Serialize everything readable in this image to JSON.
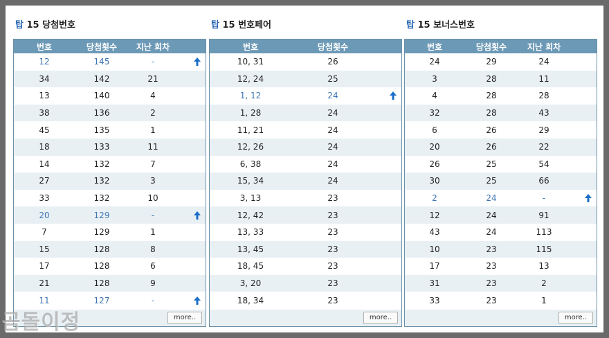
{
  "colors": {
    "header_bg": "#6c99b6",
    "border": "#6a8fa8",
    "highlight_text": "#3e76b3",
    "alt_row_bg": "#e9f0f4",
    "arrow": "#1a6fc9",
    "outer_bg": "#6a6a6a"
  },
  "watermark": "곰돌이정",
  "panels": [
    {
      "title_prefix": "탑",
      "title_rest": "15 당첨번호",
      "headers": [
        "번호",
        "당첨횟수",
        "지난 회차"
      ],
      "more_label": "more..",
      "rows": [
        {
          "c": [
            "12",
            "145",
            "-"
          ],
          "highlight": true,
          "arrow": "up-arrow-icon"
        },
        {
          "c": [
            "34",
            "142",
            "21"
          ],
          "highlight": false,
          "arrow": ""
        },
        {
          "c": [
            "13",
            "140",
            "4"
          ],
          "highlight": false,
          "arrow": ""
        },
        {
          "c": [
            "38",
            "136",
            "2"
          ],
          "highlight": false,
          "arrow": ""
        },
        {
          "c": [
            "45",
            "135",
            "1"
          ],
          "highlight": false,
          "arrow": ""
        },
        {
          "c": [
            "18",
            "133",
            "11"
          ],
          "highlight": false,
          "arrow": ""
        },
        {
          "c": [
            "14",
            "132",
            "7"
          ],
          "highlight": false,
          "arrow": ""
        },
        {
          "c": [
            "27",
            "132",
            "3"
          ],
          "highlight": false,
          "arrow": ""
        },
        {
          "c": [
            "33",
            "132",
            "10"
          ],
          "highlight": false,
          "arrow": ""
        },
        {
          "c": [
            "20",
            "129",
            "-"
          ],
          "highlight": true,
          "arrow": "up-arrow-icon"
        },
        {
          "c": [
            "7",
            "129",
            "1"
          ],
          "highlight": false,
          "arrow": ""
        },
        {
          "c": [
            "15",
            "128",
            "8"
          ],
          "highlight": false,
          "arrow": ""
        },
        {
          "c": [
            "17",
            "128",
            "6"
          ],
          "highlight": false,
          "arrow": ""
        },
        {
          "c": [
            "21",
            "128",
            "9"
          ],
          "highlight": false,
          "arrow": ""
        },
        {
          "c": [
            "11",
            "127",
            "-"
          ],
          "highlight": true,
          "arrow": "up-arrow-icon"
        }
      ]
    },
    {
      "title_prefix": "탑",
      "title_rest": "15 번호페어",
      "headers": [
        "번호",
        "당첨횟수"
      ],
      "more_label": "more..",
      "rows": [
        {
          "c": [
            "10, 31",
            "26"
          ],
          "highlight": false,
          "arrow": ""
        },
        {
          "c": [
            "12, 24",
            "25"
          ],
          "highlight": false,
          "arrow": ""
        },
        {
          "c": [
            "1, 12",
            "24"
          ],
          "highlight": true,
          "arrow": "up-arrow-icon"
        },
        {
          "c": [
            "1, 28",
            "24"
          ],
          "highlight": false,
          "arrow": ""
        },
        {
          "c": [
            "11, 21",
            "24"
          ],
          "highlight": false,
          "arrow": ""
        },
        {
          "c": [
            "12, 26",
            "24"
          ],
          "highlight": false,
          "arrow": ""
        },
        {
          "c": [
            "6, 38",
            "24"
          ],
          "highlight": false,
          "arrow": ""
        },
        {
          "c": [
            "15, 34",
            "24"
          ],
          "highlight": false,
          "arrow": ""
        },
        {
          "c": [
            "3, 13",
            "23"
          ],
          "highlight": false,
          "arrow": ""
        },
        {
          "c": [
            "12, 42",
            "23"
          ],
          "highlight": false,
          "arrow": ""
        },
        {
          "c": [
            "13, 33",
            "23"
          ],
          "highlight": false,
          "arrow": ""
        },
        {
          "c": [
            "13, 45",
            "23"
          ],
          "highlight": false,
          "arrow": ""
        },
        {
          "c": [
            "18, 45",
            "23"
          ],
          "highlight": false,
          "arrow": ""
        },
        {
          "c": [
            "3, 20",
            "23"
          ],
          "highlight": false,
          "arrow": ""
        },
        {
          "c": [
            "18, 34",
            "23"
          ],
          "highlight": false,
          "arrow": ""
        }
      ]
    },
    {
      "title_prefix": "탑",
      "title_rest": "15 보너스번호",
      "headers": [
        "번호",
        "당첨횟수",
        "지난 회차"
      ],
      "more_label": "more..",
      "rows": [
        {
          "c": [
            "24",
            "29",
            "24"
          ],
          "highlight": false,
          "arrow": ""
        },
        {
          "c": [
            "3",
            "28",
            "11"
          ],
          "highlight": false,
          "arrow": ""
        },
        {
          "c": [
            "4",
            "28",
            "28"
          ],
          "highlight": false,
          "arrow": ""
        },
        {
          "c": [
            "32",
            "28",
            "43"
          ],
          "highlight": false,
          "arrow": ""
        },
        {
          "c": [
            "6",
            "26",
            "29"
          ],
          "highlight": false,
          "arrow": ""
        },
        {
          "c": [
            "20",
            "26",
            "22"
          ],
          "highlight": false,
          "arrow": ""
        },
        {
          "c": [
            "26",
            "25",
            "54"
          ],
          "highlight": false,
          "arrow": ""
        },
        {
          "c": [
            "30",
            "25",
            "66"
          ],
          "highlight": false,
          "arrow": ""
        },
        {
          "c": [
            "2",
            "24",
            "-"
          ],
          "highlight": true,
          "arrow": "up-arrow-icon"
        },
        {
          "c": [
            "12",
            "24",
            "91"
          ],
          "highlight": false,
          "arrow": ""
        },
        {
          "c": [
            "43",
            "24",
            "113"
          ],
          "highlight": false,
          "arrow": ""
        },
        {
          "c": [
            "10",
            "23",
            "115"
          ],
          "highlight": false,
          "arrow": ""
        },
        {
          "c": [
            "17",
            "23",
            "13"
          ],
          "highlight": false,
          "arrow": ""
        },
        {
          "c": [
            "31",
            "23",
            "2"
          ],
          "highlight": false,
          "arrow": ""
        },
        {
          "c": [
            "33",
            "23",
            "1"
          ],
          "highlight": false,
          "arrow": ""
        }
      ]
    }
  ]
}
